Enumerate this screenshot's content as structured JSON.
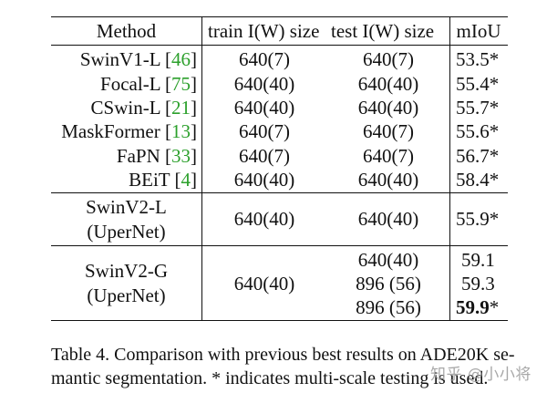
{
  "table": {
    "headers": [
      "Method",
      "train I(W) size",
      "test I(W) size",
      "mIoU"
    ],
    "rows": [
      {
        "method": "SwinV1-L",
        "cite": "46",
        "train": "640(7)",
        "test": "640(7)",
        "miou": "53.5*"
      },
      {
        "method": "Focal-L",
        "cite": "75",
        "train": "640(40)",
        "test": "640(40)",
        "miou": "55.4*"
      },
      {
        "method": "CSwin-L",
        "cite": "21",
        "train": "640(40)",
        "test": "640(40)",
        "miou": "55.7*"
      },
      {
        "method": "MaskFormer",
        "cite": "13",
        "train": "640(7)",
        "test": "640(7)",
        "miou": "55.6*"
      },
      {
        "method": "FaPN",
        "cite": "33",
        "train": "640(7)",
        "test": "640(7)",
        "miou": "56.7*"
      },
      {
        "method": "BEiT",
        "cite": "4",
        "train": "640(40)",
        "test": "640(40)",
        "miou": "58.4*"
      }
    ],
    "swinv2l": {
      "line1": "SwinV2-L",
      "line2": "(UperNet)",
      "train": "640(40)",
      "test": "640(40)",
      "miou": "55.9*"
    },
    "swinv2g": {
      "line1": "SwinV2-G",
      "line2": "(UperNet)",
      "train": "640(40)",
      "tests": [
        "640(40)",
        "896 (56)",
        "896 (56)"
      ],
      "mious": [
        "59.1",
        "59.3"
      ],
      "best_miou": "59.9",
      "best_suffix": "*"
    }
  },
  "caption": {
    "line1": "Table 4.  Comparison with previous best results on ADE20K se-",
    "line2": "mantic segmentation. * indicates multi-scale testing is used."
  },
  "watermark": "知乎 @小小将",
  "colors": {
    "citation": "#2ca02c"
  }
}
